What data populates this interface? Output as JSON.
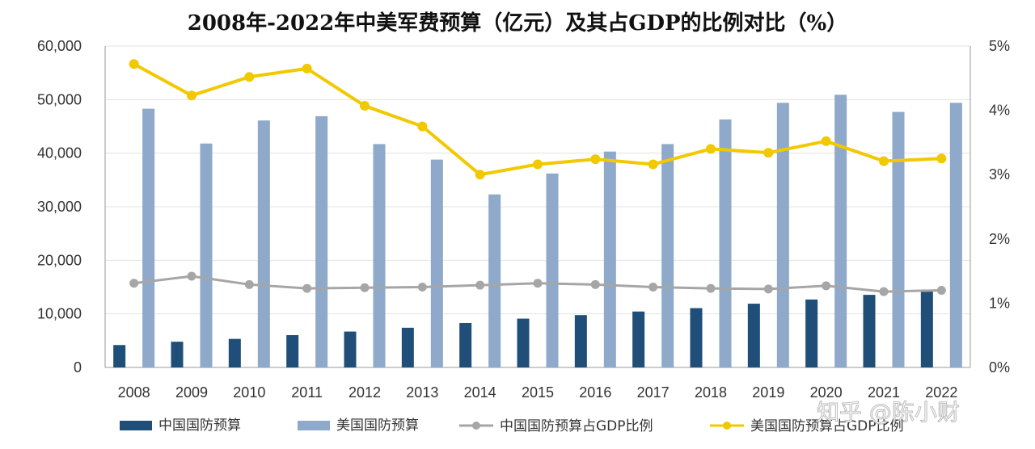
{
  "chart_data": {
    "type": "bar",
    "title": "2008年-2022年中美军费预算（亿元）及其占GDP的比例对比（%）",
    "categories": [
      "2008",
      "2009",
      "2010",
      "2011",
      "2012",
      "2013",
      "2014",
      "2015",
      "2016",
      "2017",
      "2018",
      "2019",
      "2020",
      "2021",
      "2022"
    ],
    "left_axis": {
      "min": 0,
      "max": 60000,
      "ticks": [
        "0",
        "10,000",
        "20,000",
        "30,000",
        "40,000",
        "50,000",
        "60,000"
      ]
    },
    "right_axis": {
      "min": 0,
      "max": 5,
      "unit": "%",
      "ticks": [
        "0%",
        "1%",
        "2%",
        "3%",
        "4%",
        "5%"
      ]
    },
    "grid": true,
    "legend_position": "bottom",
    "series": [
      {
        "name": "中国国防预算",
        "kind": "bar",
        "axis": "left",
        "color": "#1f4e79",
        "values": [
          4180,
          4800,
          5330,
          6030,
          6700,
          7410,
          8290,
          9110,
          9770,
          10440,
          11070,
          11900,
          12680,
          13550,
          14500
        ]
      },
      {
        "name": "美国国防预算",
        "kind": "bar",
        "axis": "left",
        "color": "#8ea9c9",
        "values": [
          48300,
          41800,
          46100,
          46900,
          41700,
          38800,
          32300,
          36200,
          40300,
          41700,
          46300,
          49400,
          50900,
          47700,
          49400
        ]
      },
      {
        "name": "中国国防预算占GDP比例",
        "kind": "line",
        "axis": "right",
        "color": "#a6a6a6",
        "values": [
          1.31,
          1.42,
          1.29,
          1.23,
          1.24,
          1.25,
          1.28,
          1.31,
          1.29,
          1.25,
          1.23,
          1.22,
          1.27,
          1.18,
          1.2
        ]
      },
      {
        "name": "美国国防预算占GDP比例",
        "kind": "line",
        "axis": "right",
        "color": "#f2c800",
        "values": [
          4.72,
          4.23,
          4.52,
          4.65,
          4.07,
          3.75,
          3.0,
          3.16,
          3.24,
          3.16,
          3.4,
          3.34,
          3.52,
          3.21,
          3.25
        ]
      }
    ]
  },
  "watermark": "知乎 @陈小财"
}
